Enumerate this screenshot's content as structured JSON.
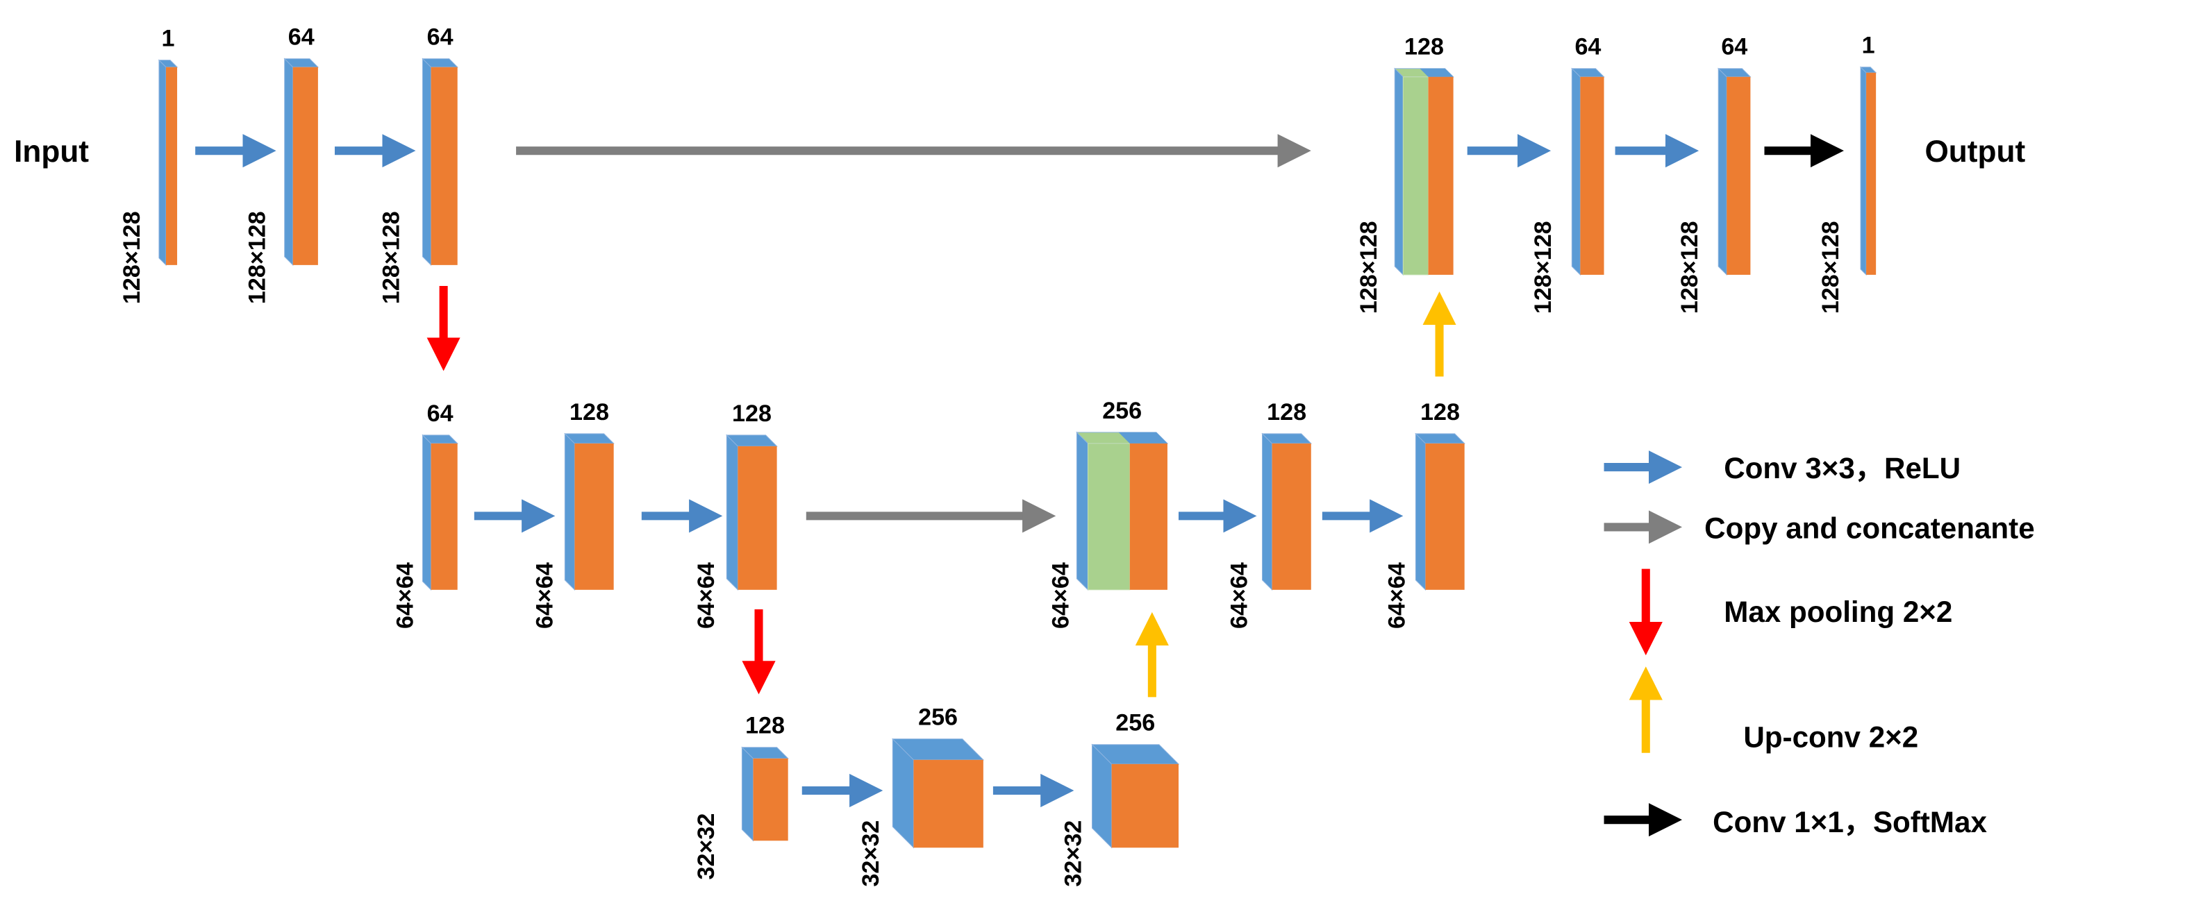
{
  "input_label": "Input",
  "output_label": "Output",
  "nodes": [
    {
      "channels": "1",
      "size": "128×128"
    },
    {
      "channels": "64",
      "size": "128×128"
    },
    {
      "channels": "64",
      "size": "128×128"
    },
    {
      "channels": "64",
      "size": "64×64"
    },
    {
      "channels": "128",
      "size": "64×64"
    },
    {
      "channels": "128",
      "size": "64×64"
    },
    {
      "channels": "128",
      "size": "32×32"
    },
    {
      "channels": "256",
      "size": "32×32"
    },
    {
      "channels": "256",
      "size": "32×32"
    },
    {
      "channels": "256",
      "size": "64×64"
    },
    {
      "channels": "128",
      "size": "64×64"
    },
    {
      "channels": "128",
      "size": "64×64"
    },
    {
      "channels": "128",
      "size": "128×128"
    },
    {
      "channels": "64",
      "size": "128×128"
    },
    {
      "channels": "64",
      "size": "128×128"
    },
    {
      "channels": "1",
      "size": "128×128"
    }
  ],
  "legend": [
    {
      "label": "Conv 3×3，ReLU"
    },
    {
      "label": "Copy and concatenante"
    },
    {
      "label": "Max pooling 2×2"
    },
    {
      "label": "Up-conv 2×2"
    },
    {
      "label": "Conv 1×1，SoftMax"
    }
  ]
}
